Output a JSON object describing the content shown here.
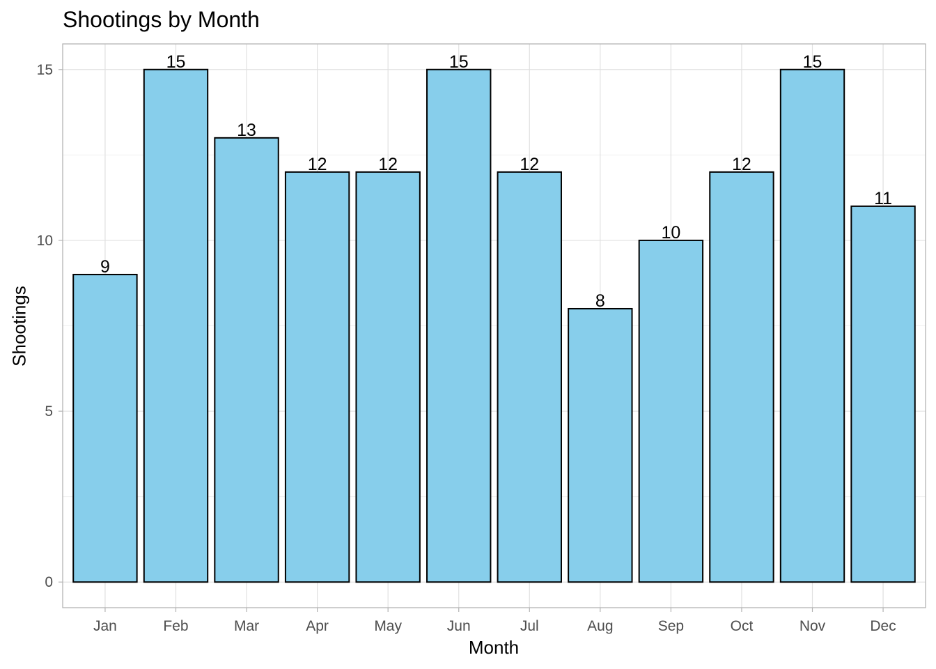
{
  "chart_data": {
    "type": "bar",
    "title": "Shootings by Month",
    "xlabel": "Month",
    "ylabel": "Shootings",
    "categories": [
      "Jan",
      "Feb",
      "Mar",
      "Apr",
      "May",
      "Jun",
      "Jul",
      "Aug",
      "Sep",
      "Oct",
      "Nov",
      "Dec"
    ],
    "values": [
      9,
      15,
      13,
      12,
      12,
      15,
      12,
      8,
      10,
      12,
      15,
      11
    ],
    "ylim": [
      -0.75,
      15.75
    ],
    "yticks": [
      0,
      5,
      10,
      15
    ],
    "grid": true,
    "legend": "none",
    "bar_color": "#87CEEB",
    "bar_border_color": "#000000",
    "data_labels": true
  }
}
